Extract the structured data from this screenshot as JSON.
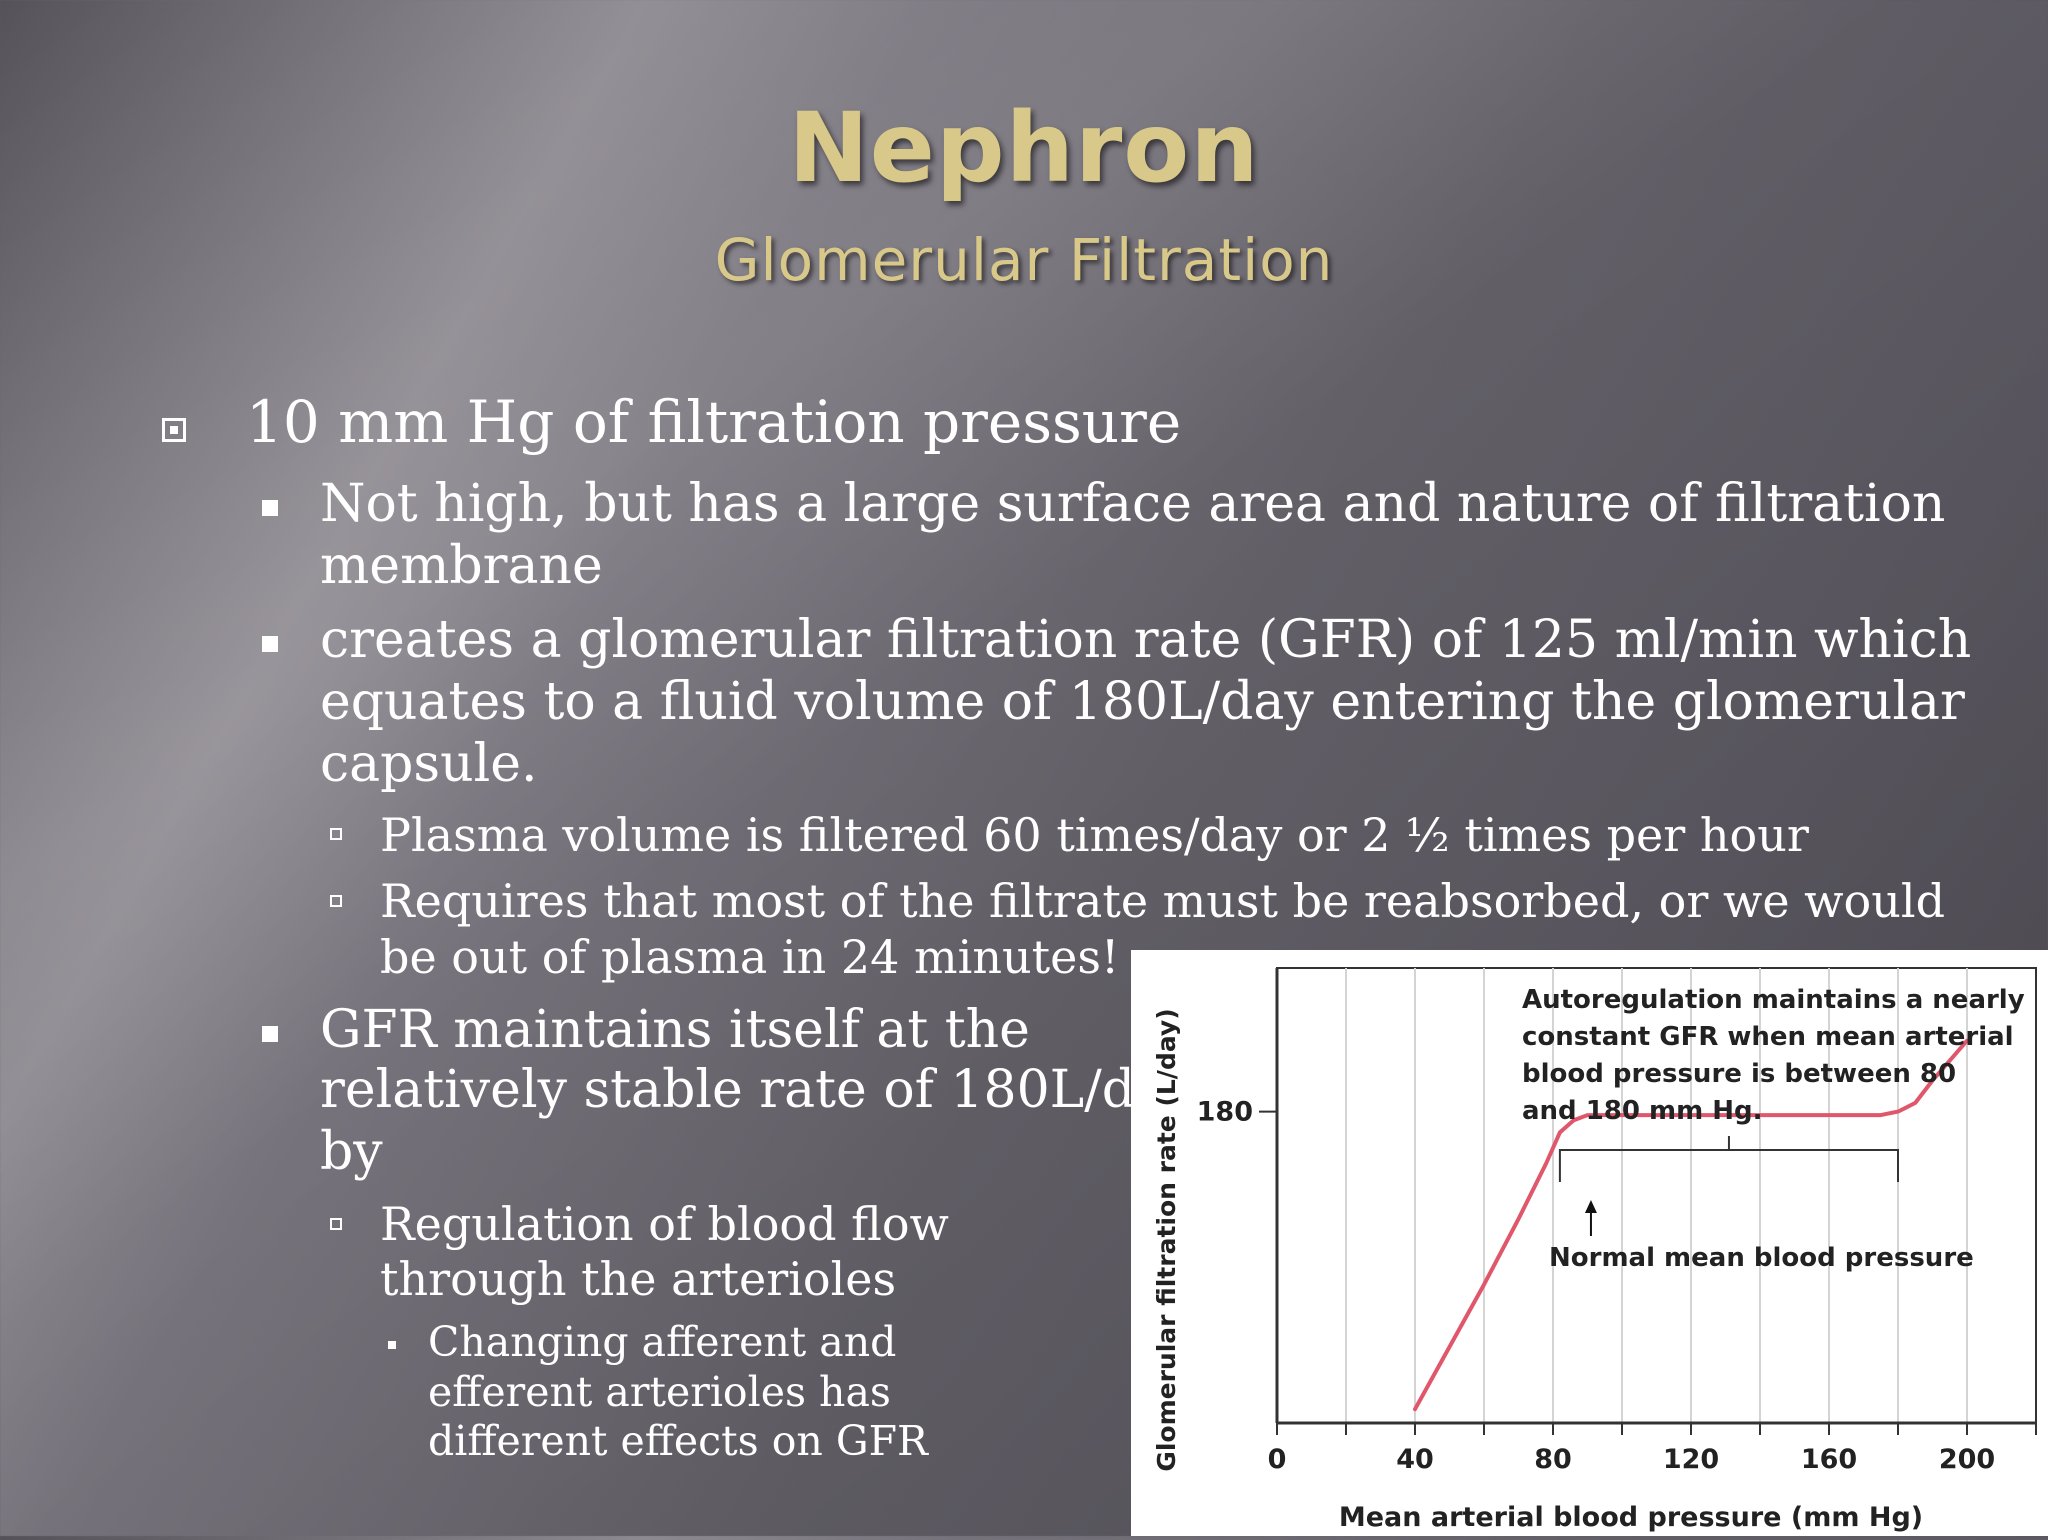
{
  "slide": {
    "title": "Nephron",
    "subtitle": "Glomerular Filtration"
  },
  "bullets": {
    "b1": "10 mm Hg of filtration pressure",
    "b1_1_lines": [
      "Not high, but has a large surface area and nature of filtration",
      "membrane"
    ],
    "b1_2_lines": [
      "creates a glomerular filtration rate (GFR) of 125 ml/min which",
      "equates to a fluid volume of 180L/day entering the glomerular",
      "capsule."
    ],
    "b1_2_1": "Plasma volume is filtered 60 times/day or 2 ½ times per hour",
    "b1_2_2_lines": [
      "Requires that most of the filtrate must be reabsorbed, or we would",
      "be out of plasma in 24 minutes!"
    ],
    "b1_3_lines": [
      "GFR maintains itself at the",
      "relatively stable rate of 180L/day",
      "by"
    ],
    "b1_3_1_lines": [
      "Regulation of blood flow",
      "through the arterioles"
    ],
    "b1_3_1_1_lines": [
      "Changing afferent and",
      "efferent arterioles has",
      "different effects on GFR"
    ]
  },
  "chart_data": {
    "type": "line",
    "xlabel": "Mean arterial blood pressure (mm Hg)",
    "ylabel": "Glomerular filtration rate (L/day)",
    "x_ticks": [
      "0",
      "40",
      "80",
      "120",
      "160",
      "200"
    ],
    "y_ticks": [
      "180"
    ],
    "xlim": [
      0,
      220
    ],
    "ylim": [
      0,
      263
    ],
    "grid": true,
    "series": [
      {
        "color": "#e0566a",
        "x": [
          40,
          50,
          60,
          70,
          78,
          82,
          86,
          90,
          100,
          120,
          140,
          160,
          175,
          180,
          185,
          190,
          200
        ],
        "y": [
          8,
          44,
          80,
          118,
          150,
          168,
          175,
          178,
          178,
          178,
          178,
          178,
          178,
          180,
          185,
          198,
          221
        ]
      }
    ],
    "annotations": {
      "autoregulation": [
        "Autoregulation maintains a nearly",
        "constant GFR when mean arterial",
        "blood pressure is between 80",
        "and 180 mm Hg."
      ],
      "autoregulation_range": [
        82,
        180
      ],
      "normal_pressure": "Normal mean blood pressure",
      "normal_pressure_x": 91
    }
  }
}
